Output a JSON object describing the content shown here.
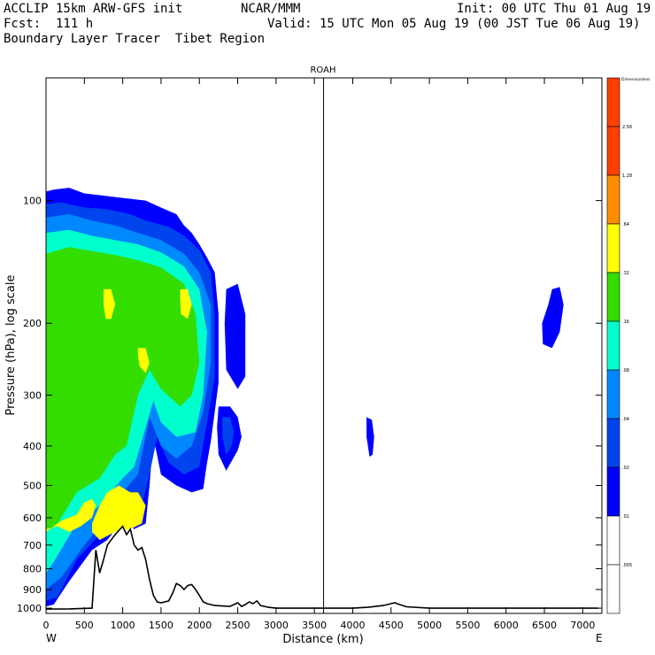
{
  "header": {
    "line1_left": "ACCLIP 15km ARW-GFS init",
    "line1_center": "NCAR/MMM",
    "line1_right": "Init: 00 UTC Thu 01 Aug 19",
    "line2_left": "Fcst:  111 h",
    "line2_right": "Valid: 15 UTC Mon 05 Aug 19 (00 JST Tue 06 Aug 19)",
    "line3_left": "Boundary Layer Tracer  Tibet Region"
  },
  "chart_data": {
    "type": "heatmap",
    "title": "ROAH",
    "xlabel": "Distance (km)",
    "ylabel": "Pressure (hPa), log scale",
    "xlim": [
      0,
      7250
    ],
    "ylim": [
      1030,
      50
    ],
    "x_ticks": [
      "0",
      "500",
      "1000",
      "1500",
      "2000",
      "2500",
      "3000",
      "3500",
      "4000",
      "4500",
      "5000",
      "5500",
      "6000",
      "6500",
      "7000"
    ],
    "y_ticks": [
      "100",
      "200",
      "300",
      "400",
      "500",
      "600",
      "700",
      "800",
      "900",
      "1000"
    ],
    "y_tick_values": [
      100,
      200,
      300,
      400,
      500,
      600,
      700,
      800,
      900,
      1000
    ],
    "x_end_labels": {
      "left": "W",
      "right": "E"
    },
    "marker_line_km": 3620,
    "colorbar": {
      "top_label": "Dimensionless",
      "levels": [
        "2.56",
        "1.28",
        ".64",
        ".32",
        ".16",
        ".08",
        ".04",
        ".02",
        ".01",
        ".005"
      ],
      "colors": [
        "#ff4000",
        "#ff8c00",
        "#ffff00",
        "#33dd00",
        "#00ffcc",
        "#0088ff",
        "#0044ee",
        "#0000ff",
        "#ffffff",
        "#ffffff"
      ]
    },
    "terrain_profile": {
      "x_km": [
        0,
        300,
        600,
        650,
        700,
        750,
        800,
        900,
        1000,
        1050,
        1100,
        1150,
        1200,
        1250,
        1300,
        1350,
        1400,
        1450,
        1500,
        1600,
        1650,
        1700,
        1750,
        1800,
        1850,
        1900,
        1950,
        2000,
        2050,
        2100,
        2200,
        2400,
        2500,
        2550,
        2600,
        2650,
        2700,
        2750,
        2800,
        2900,
        3000,
        3500,
        4000,
        4200,
        4400,
        4500,
        4550,
        4600,
        4700,
        5000,
        6000,
        7000,
        7200
      ],
      "p_hPa": [
        1005,
        1004,
        1000,
        720,
        820,
        760,
        700,
        660,
        630,
        660,
        640,
        700,
        720,
        710,
        760,
        850,
        930,
        965,
        970,
        960,
        920,
        870,
        880,
        900,
        880,
        875,
        900,
        930,
        965,
        975,
        985,
        990,
        970,
        990,
        980,
        965,
        975,
        960,
        985,
        995,
        1000,
        1000,
        1000,
        995,
        985,
        975,
        970,
        978,
        992,
        1000,
        1000,
        1000,
        1000
      ]
    },
    "filled_regions": [
      {
        "level": ".02",
        "x_km": [
          0,
          100,
          300,
          500,
          700,
          900,
          1100,
          1300,
          1500,
          1700,
          1800,
          1900,
          2000,
          2100,
          2200,
          2250,
          2250,
          2200,
          2150,
          2100,
          2050,
          1900,
          1700,
          1500,
          1400,
          1350,
          1300,
          1150,
          1000,
          800,
          600,
          300,
          100,
          0
        ],
        "p_hPa": [
          95,
          94,
          93,
          96,
          97,
          98,
          99,
          100,
          104,
          108,
          115,
          120,
          128,
          138,
          150,
          190,
          280,
          330,
          390,
          440,
          510,
          520,
          500,
          470,
          380,
          500,
          620,
          640,
          610,
          680,
          720,
          860,
          980,
          990
        ]
      },
      {
        "level": ".04",
        "x_km": [
          0,
          200,
          500,
          800,
          1100,
          1300,
          1600,
          1800,
          2000,
          2150,
          2200,
          2200,
          2100,
          2000,
          1800,
          1600,
          1450,
          1350,
          1200,
          1000,
          700,
          400,
          150,
          0
        ],
        "p_hPa": [
          102,
          101,
          104,
          105,
          108,
          112,
          116,
          122,
          132,
          150,
          190,
          270,
          350,
          450,
          470,
          440,
          380,
          470,
          610,
          600,
          660,
          760,
          940,
          960
        ]
      },
      {
        "level": ".08",
        "x_km": [
          0,
          300,
          600,
          900,
          1200,
          1500,
          1800,
          2000,
          2150,
          2150,
          2050,
          1900,
          1700,
          1500,
          1350,
          1200,
          1000,
          800,
          500,
          200,
          0
        ],
        "p_hPa": [
          110,
          108,
          112,
          115,
          120,
          125,
          135,
          150,
          180,
          250,
          330,
          400,
          430,
          400,
          340,
          470,
          520,
          600,
          700,
          840,
          900
        ]
      },
      {
        "level": ".16",
        "x_km": [
          0,
          300,
          600,
          900,
          1200,
          1500,
          1800,
          2000,
          2100,
          2050,
          1950,
          1700,
          1500,
          1400,
          1300,
          1150,
          1000,
          700,
          400,
          100,
          0
        ],
        "p_hPa": [
          120,
          118,
          122,
          125,
          128,
          134,
          145,
          165,
          210,
          300,
          370,
          380,
          350,
          310,
          360,
          450,
          480,
          560,
          620,
          770,
          820
        ]
      },
      {
        "level": ".32",
        "x_km": [
          0,
          300,
          600,
          900,
          1200,
          1500,
          1800,
          1950,
          2000,
          1900,
          1750,
          1500,
          1350,
          1200,
          1050,
          900,
          700,
          400,
          150,
          0
        ],
        "p_hPa": [
          135,
          130,
          133,
          136,
          140,
          146,
          160,
          190,
          250,
          300,
          320,
          290,
          260,
          300,
          400,
          420,
          480,
          520,
          620,
          650
        ]
      },
      {
        "level": ".64",
        "x_km": [
          0,
          150,
          300,
          450,
          600,
          650,
          600,
          500,
          400,
          300,
          200,
          100,
          0
        ],
        "p_hPa": [
          640,
          630,
          650,
          630,
          600,
          560,
          540,
          550,
          590,
          600,
          610,
          630,
          650
        ]
      },
      {
        "level": ".64",
        "x_km": [
          600,
          700,
          800,
          950,
          1100,
          1200,
          1300,
          1250,
          1100,
          900,
          700,
          600
        ],
        "p_hPa": [
          620,
          560,
          520,
          500,
          520,
          520,
          560,
          620,
          640,
          650,
          680,
          650
        ]
      },
      {
        "level": ".64",
        "x_km": [
          750,
          850,
          900,
          850,
          780,
          750
        ],
        "p_hPa": [
          165,
          165,
          180,
          195,
          195,
          180
        ]
      },
      {
        "level": ".64",
        "x_km": [
          1750,
          1850,
          1900,
          1850,
          1760,
          1750
        ],
        "p_hPa": [
          165,
          165,
          180,
          195,
          190,
          175
        ]
      },
      {
        "level": ".64",
        "x_km": [
          1200,
          1300,
          1350,
          1300,
          1220,
          1200
        ],
        "p_hPa": [
          230,
          230,
          250,
          265,
          255,
          240
        ]
      },
      {
        "level": ".04",
        "x_km": [
          2400,
          2500,
          2550,
          2550,
          2500,
          2420,
          2400
        ],
        "p_hPa": [
          175,
          175,
          200,
          260,
          275,
          250,
          210
        ]
      },
      {
        "level": ".02",
        "x_km": [
          2350,
          2500,
          2600,
          2600,
          2500,
          2350,
          2330
        ],
        "p_hPa": [
          165,
          160,
          190,
          270,
          290,
          260,
          200
        ]
      },
      {
        "level": ".02",
        "x_km": [
          2250,
          2400,
          2500,
          2550,
          2500,
          2350,
          2250,
          2230
        ],
        "p_hPa": [
          320,
          320,
          340,
          380,
          410,
          460,
          420,
          360
        ]
      },
      {
        "level": ".04",
        "x_km": [
          2300,
          2400,
          2450,
          2420,
          2350,
          2300
        ],
        "p_hPa": [
          340,
          340,
          370,
          400,
          420,
          380
        ]
      },
      {
        "level": ".02",
        "x_km": [
          4180,
          4250,
          4280,
          4260,
          4220,
          4180
        ],
        "p_hPa": [
          340,
          345,
          380,
          420,
          425,
          380
        ]
      },
      {
        "level": ".02",
        "x_km": [
          6600,
          6700,
          6750,
          6700,
          6600,
          6480,
          6470,
          6550
        ],
        "p_hPa": [
          165,
          163,
          180,
          210,
          230,
          225,
          200,
          180
        ]
      }
    ]
  }
}
